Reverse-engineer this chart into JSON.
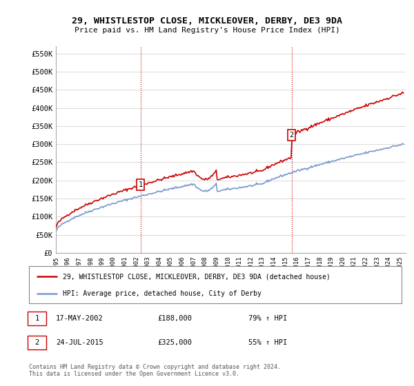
{
  "title": "29, WHISTLESTOP CLOSE, MICKLEOVER, DERBY, DE3 9DA",
  "subtitle": "Price paid vs. HM Land Registry's House Price Index (HPI)",
  "ylabel_ticks": [
    "£0",
    "£50K",
    "£100K",
    "£150K",
    "£200K",
    "£250K",
    "£300K",
    "£350K",
    "£400K",
    "£450K",
    "£500K",
    "£550K"
  ],
  "ylim": [
    0,
    570000
  ],
  "xlim_start": 1995.0,
  "xlim_end": 2025.5,
  "sale1_x": 2002.375,
  "sale1_y": 188000,
  "sale2_x": 2015.556,
  "sale2_y": 325000,
  "red_color": "#cc0000",
  "blue_color": "#7799cc",
  "vline_color": "#cc0000",
  "legend_line1": "29, WHISTLESTOP CLOSE, MICKLEOVER, DERBY, DE3 9DA (detached house)",
  "legend_line2": "HPI: Average price, detached house, City of Derby",
  "footer": "Contains HM Land Registry data © Crown copyright and database right 2024.\nThis data is licensed under the Open Government Licence v3.0.",
  "bg_color": "#ffffff",
  "grid_color": "#dddddd"
}
